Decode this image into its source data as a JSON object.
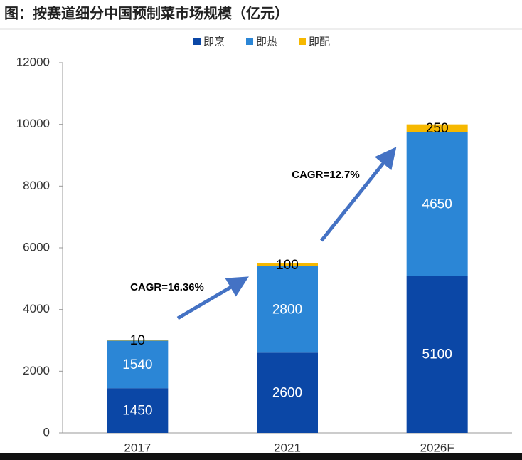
{
  "chart_data": {
    "type": "stacked_bar",
    "title": "图：按赛道细分中国预制菜市场规模（亿元）",
    "categories": [
      "2017",
      "2021",
      "2026F"
    ],
    "series": [
      {
        "name": "即烹",
        "color": "#0b47a6",
        "values": [
          1450,
          2600,
          5100
        ]
      },
      {
        "name": "即热",
        "color": "#2b86d6",
        "values": [
          1540,
          2800,
          4650
        ]
      },
      {
        "name": "即配",
        "color": "#f6b800",
        "values": [
          10,
          100,
          250
        ]
      }
    ],
    "annotations": [
      "CAGR=16.36%",
      "CAGR=12.7%"
    ],
    "ylim": [
      0,
      12000
    ],
    "yticks": [
      0,
      2000,
      4000,
      6000,
      8000,
      10000,
      12000
    ],
    "legend": "top"
  }
}
